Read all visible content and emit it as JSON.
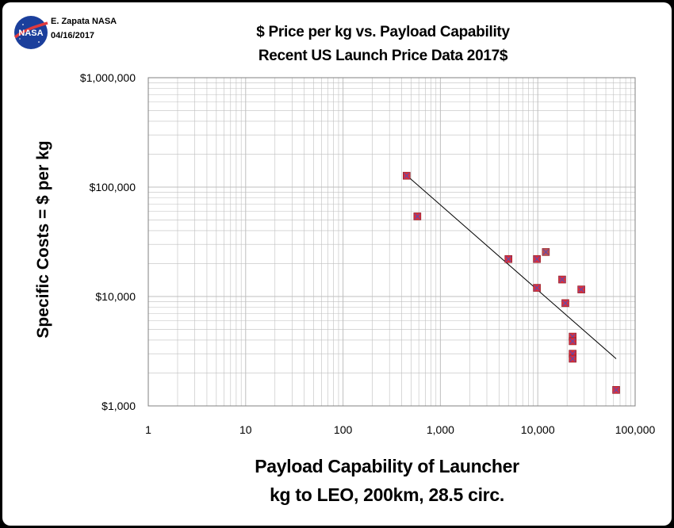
{
  "header": {
    "author": "E. Zapata NASA",
    "date": "04/16/2017",
    "logo_text": "NASA"
  },
  "chart_data": {
    "type": "scatter",
    "title": "$ Price per kg vs. Payload Capability",
    "subtitle": "Recent US Launch Price Data 2017$",
    "xlabel": [
      "Payload Capability of Launcher",
      "kg to LEO, 200km, 28.5 circ."
    ],
    "ylabel": "Specific Costs = $ per kg",
    "x_scale": "log",
    "y_scale": "log",
    "xlim": [
      1,
      100000
    ],
    "ylim": [
      1000,
      1000000
    ],
    "x_ticks": [
      1,
      10,
      100,
      1000,
      10000,
      100000
    ],
    "x_tick_labels": [
      "1",
      "10",
      "100",
      "1,000",
      "10,000",
      "100,000"
    ],
    "y_ticks": [
      1000,
      10000,
      100000,
      1000000
    ],
    "y_tick_labels": [
      "$1,000",
      "$10,000",
      "$100,000",
      "$1,000,000"
    ],
    "grid": true,
    "marker": "x-square",
    "points": [
      {
        "x": 450,
        "y": 127000
      },
      {
        "x": 580,
        "y": 54000
      },
      {
        "x": 5000,
        "y": 22000
      },
      {
        "x": 9800,
        "y": 22000
      },
      {
        "x": 12100,
        "y": 25500
      },
      {
        "x": 9800,
        "y": 12000
      },
      {
        "x": 17800,
        "y": 14300
      },
      {
        "x": 19200,
        "y": 8700
      },
      {
        "x": 28000,
        "y": 11600
      },
      {
        "x": 22800,
        "y": 4300
      },
      {
        "x": 22800,
        "y": 3900
      },
      {
        "x": 22800,
        "y": 3000
      },
      {
        "x": 22800,
        "y": 2700
      },
      {
        "x": 63800,
        "y": 1400
      }
    ],
    "trendline": {
      "x": [
        450,
        63800
      ],
      "y": [
        128000,
        2700
      ]
    },
    "colors": {
      "marker_fill": "#dd2e3b",
      "marker_alt_fill": "#c0504d",
      "marker_cross": "#6a4aa0",
      "grid": "#bfbfbf",
      "trendline": "#000000"
    }
  }
}
